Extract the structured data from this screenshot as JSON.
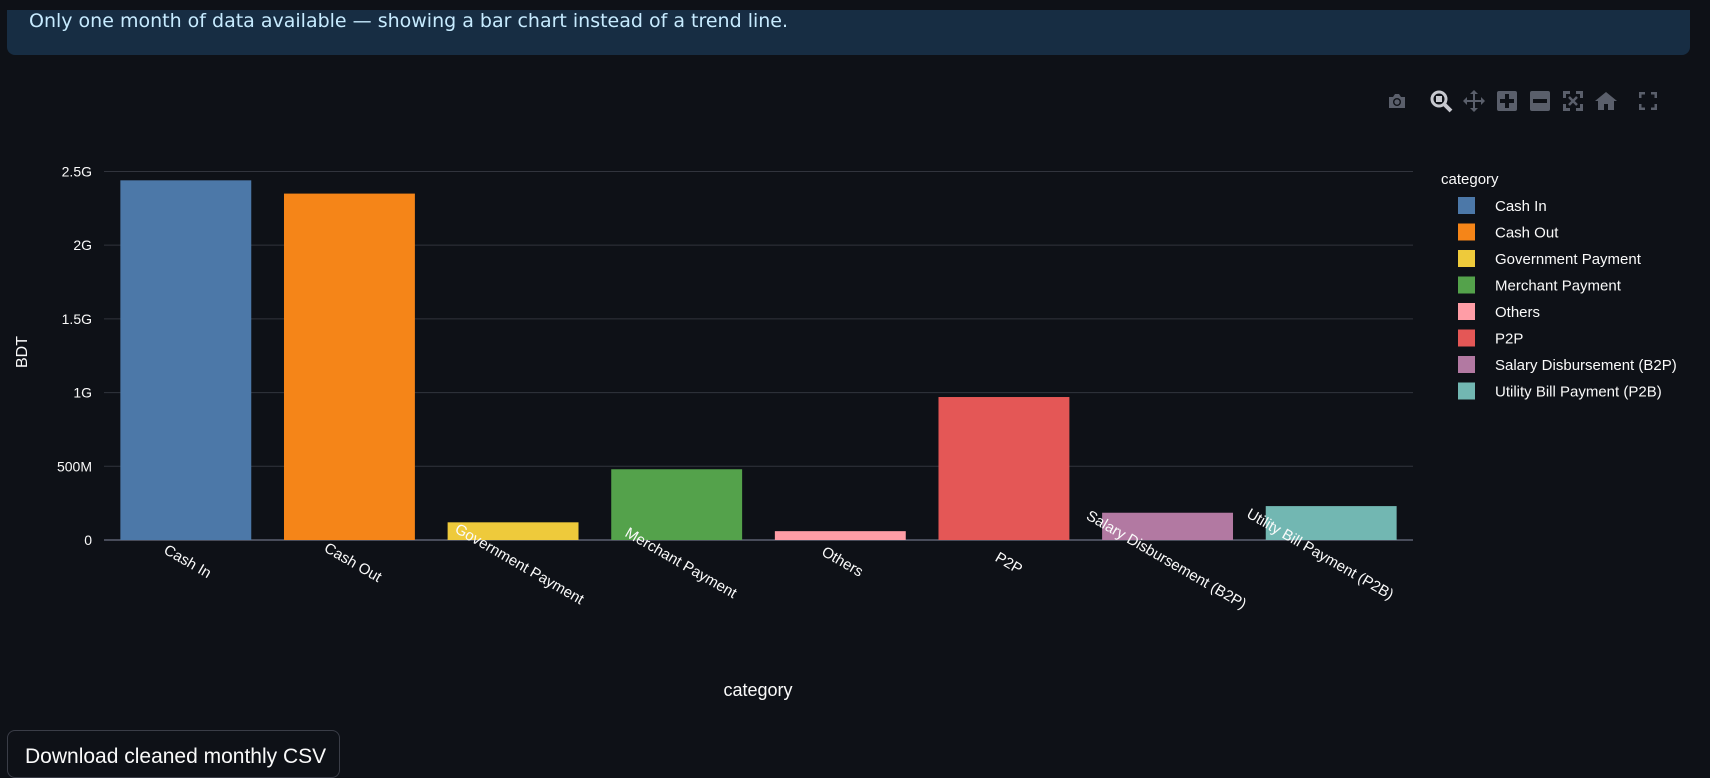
{
  "info_banner": {
    "text": "Only one month of data available — showing a bar chart instead of a trend line."
  },
  "toolbar": {
    "icons": [
      "camera-icon",
      "zoom-icon",
      "pan-icon",
      "zoom-in-icon",
      "zoom-out-icon",
      "autoscale-icon",
      "reset-axes-icon",
      "fullscreen-icon"
    ]
  },
  "download": {
    "label": "Download cleaned monthly CSV"
  },
  "chart_data": {
    "type": "bar",
    "xlabel": "category",
    "ylabel": "BDT",
    "ylim": [
      0,
      2700000000
    ],
    "y_ticks": [
      {
        "value": 0,
        "label": "0"
      },
      {
        "value": 500000000,
        "label": "500M"
      },
      {
        "value": 1000000000,
        "label": "1G"
      },
      {
        "value": 1500000000,
        "label": "1.5G"
      },
      {
        "value": 2000000000,
        "label": "2G"
      },
      {
        "value": 2500000000,
        "label": "2.5G"
      }
    ],
    "grid": true,
    "legend": {
      "title": "category",
      "placement": "right"
    },
    "categories": [
      "Cash In",
      "Cash Out",
      "Government Payment",
      "Merchant Payment",
      "Others",
      "P2P",
      "Salary Disbursement (B2P)",
      "Utility Bill Payment (P2B)"
    ],
    "values": [
      2440000000,
      2350000000,
      120000000,
      480000000,
      60000000,
      970000000,
      185000000,
      230000000
    ],
    "colors": [
      "#4c78a8",
      "#f58518",
      "#eeca3b",
      "#54a24b",
      "#ff9da6",
      "#e45756",
      "#b279a2",
      "#72b7b2"
    ]
  }
}
